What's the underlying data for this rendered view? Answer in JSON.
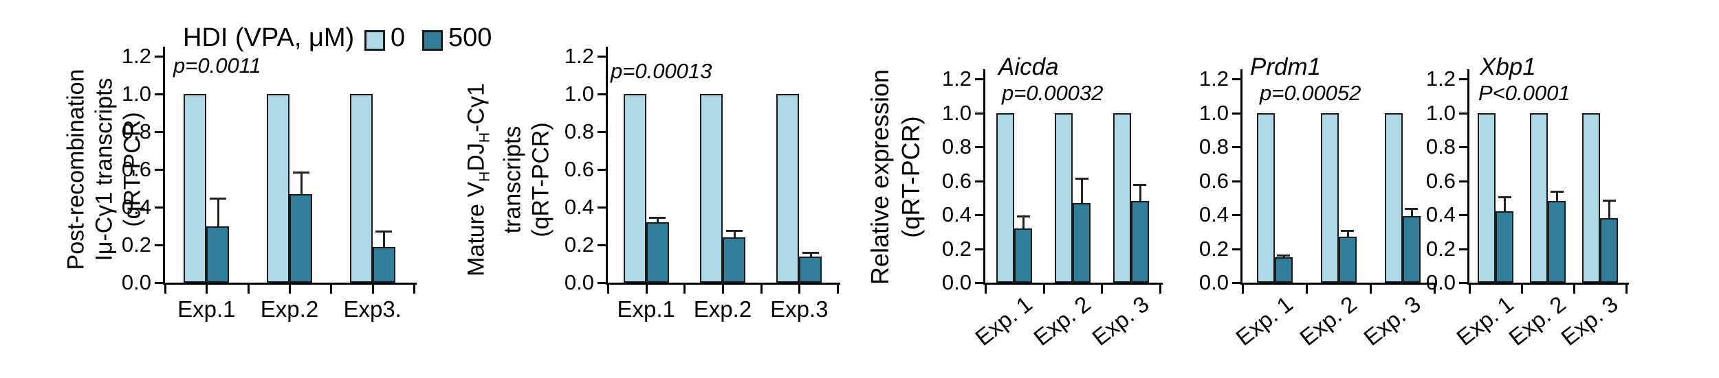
{
  "figure": {
    "description": "qRT-PCR bar figure, five panels, HDI (VPA) treatment vs control",
    "background": "#ffffff"
  },
  "legend": {
    "title": "HDI (VPA, μM)",
    "items": [
      {
        "label": "0",
        "color": "#AFD9E7"
      },
      {
        "label": "500",
        "color": "#307E99"
      }
    ]
  },
  "style": {
    "bar_border": "#1a1a1a",
    "axis_color": "#000000",
    "error_color": "#222222"
  },
  "chart_data": [
    {
      "type": "bar",
      "title": "",
      "p_label": "p=0.0011",
      "ylabel_lines": [
        [
          {
            "t": "Post-recombination"
          }
        ],
        [
          {
            "t": "Iμ-Cγ1 transcripts"
          }
        ],
        [
          {
            "t": "(qRT-PCR)"
          }
        ]
      ],
      "categories": [
        "Exp.1",
        "Exp.2",
        "Exp3."
      ],
      "series": [
        {
          "name": "0",
          "color": "#AFD9E7",
          "values": [
            1.0,
            1.0,
            1.0
          ],
          "errors": [
            0,
            0,
            0
          ]
        },
        {
          "name": "500",
          "color": "#307E99",
          "values": [
            0.3,
            0.47,
            0.19
          ],
          "errors": [
            0.15,
            0.12,
            0.085
          ]
        }
      ],
      "ylim": [
        0,
        1.2
      ],
      "yticks": [
        "0.0",
        "0.2",
        "0.4",
        "0.6",
        "0.8",
        "1.0",
        "1.2"
      ],
      "rotated_xlabels": false,
      "grid": false,
      "legend_position": "top-left"
    },
    {
      "type": "bar",
      "title": "",
      "p_label": "p=0.00013",
      "ylabel_lines": [
        [
          {
            "t": "Mature V"
          },
          {
            "t": "H",
            "sub": true
          },
          {
            "t": "DJ"
          },
          {
            "t": "H",
            "sub": true
          },
          {
            "t": "-Cγ1"
          }
        ],
        [
          {
            "t": "transcripts"
          }
        ],
        [
          {
            "t": "(qRT-PCR)"
          }
        ]
      ],
      "categories": [
        "Exp.1",
        "Exp.2",
        "Exp.3"
      ],
      "series": [
        {
          "name": "0",
          "color": "#AFD9E7",
          "values": [
            1.0,
            1.0,
            1.0
          ],
          "errors": [
            0,
            0,
            0
          ]
        },
        {
          "name": "500",
          "color": "#307E99",
          "values": [
            0.32,
            0.24,
            0.14
          ],
          "errors": [
            0.03,
            0.04,
            0.025
          ]
        }
      ],
      "ylim": [
        0,
        1.2
      ],
      "yticks": [
        "0.0",
        "0.2",
        "0.4",
        "0.6",
        "0.8",
        "1.0",
        "1.2"
      ],
      "rotated_xlabels": false,
      "grid": false
    },
    {
      "type": "bar",
      "title": "Aicda",
      "p_label": "p=0.00032",
      "ylabel_lines": [
        [
          {
            "t": "Relative expression"
          }
        ],
        [
          {
            "t": "(qRT-PCR)"
          }
        ]
      ],
      "categories": [
        "Exp. 1",
        "Exp. 2",
        "Exp. 3"
      ],
      "series": [
        {
          "name": "0",
          "color": "#AFD9E7",
          "values": [
            1.0,
            1.0,
            1.0
          ],
          "errors": [
            0,
            0,
            0
          ]
        },
        {
          "name": "500",
          "color": "#307E99",
          "values": [
            0.32,
            0.47,
            0.48
          ],
          "errors": [
            0.075,
            0.15,
            0.1
          ]
        }
      ],
      "ylim": [
        0,
        1.2
      ],
      "yticks": [
        "0.0",
        "0.2",
        "0.4",
        "0.6",
        "0.8",
        "1.0",
        "1.2"
      ],
      "rotated_xlabels": true,
      "grid": false
    },
    {
      "type": "bar",
      "title": "Prdm1",
      "p_label": "p=0.00052",
      "ylabel_lines": null,
      "categories": [
        "Exp. 1",
        "Exp. 2",
        "Exp. 3"
      ],
      "series": [
        {
          "name": "0",
          "color": "#AFD9E7",
          "values": [
            1.0,
            1.0,
            1.0
          ],
          "errors": [
            0,
            0,
            0
          ]
        },
        {
          "name": "500",
          "color": "#307E99",
          "values": [
            0.15,
            0.27,
            0.39
          ],
          "errors": [
            0.015,
            0.04,
            0.05
          ]
        }
      ],
      "ylim": [
        0,
        1.2
      ],
      "yticks": [
        "0.0",
        "0.2",
        "0.4",
        "0.6",
        "0.8",
        "1.0",
        "1.2"
      ],
      "rotated_xlabels": true,
      "grid": false
    },
    {
      "type": "bar",
      "title": "Xbp1",
      "p_label": "P<0.0001",
      "ylabel_lines": null,
      "categories": [
        "Exp. 1",
        "Exp. 2",
        "Exp. 3"
      ],
      "series": [
        {
          "name": "0",
          "color": "#AFD9E7",
          "values": [
            1.0,
            1.0,
            1.0
          ],
          "errors": [
            0,
            0,
            0
          ]
        },
        {
          "name": "500",
          "color": "#307E99",
          "values": [
            0.42,
            0.48,
            0.38
          ],
          "errors": [
            0.09,
            0.06,
            0.11
          ]
        }
      ],
      "ylim": [
        0,
        1.2
      ],
      "yticks": [
        "0.0",
        "0.2",
        "0.4",
        "0.6",
        "0.8",
        "1.0",
        "1.2"
      ],
      "rotated_xlabels": true,
      "grid": false
    }
  ]
}
